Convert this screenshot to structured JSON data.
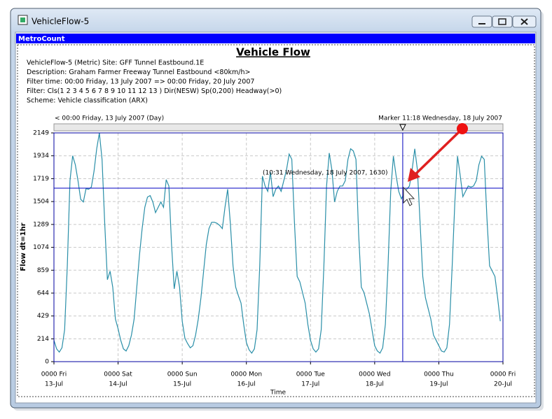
{
  "window": {
    "title": "VehicleFlow-5",
    "toolbar": "MetroCount"
  },
  "chart_data": {
    "type": "line",
    "title": "Vehicle Flow",
    "info": [
      "VehicleFlow-5 (Metric) Site: GFF Tunnel Eastbound.1E",
      "Description: Graham Farmer Freeway Tunnel Eastbound <80km/h>",
      "Filter time: 00:00 Friday, 13 July 2007 => 00:00 Friday, 20 July 2007",
      "Filter: Cls(1 2 3 4 5 6 7 8 9 10 11 12 13 ) Dir(NESW) Sp(0,200) Headway(>0)",
      "Scheme: Vehicle classification (ARX)"
    ],
    "range_label": "< 00:00 Friday, 13 July 2007 (Day)",
    "marker_label": "Marker 11:18 Wednesday, 18 July 2007",
    "marker_x": 130.5,
    "cursor": {
      "value": 1630,
      "label": "(10:31 Wednesday, 18 July 2007, 1630)"
    },
    "x_label": "Time",
    "y_label": "Flow dt=1hr",
    "color": "#2a8fa8",
    "grid": true,
    "xlim": [
      0,
      168
    ],
    "ylim": [
      0,
      2149
    ],
    "yticks": [
      0,
      214,
      429,
      644,
      859,
      1074,
      1289,
      1504,
      1719,
      1934,
      2149
    ],
    "xticks": [
      {
        "value": 0,
        "label": "0000 Fri"
      },
      {
        "value": 24,
        "label": "0000 Sat"
      },
      {
        "value": 48,
        "label": "0000 Sun"
      },
      {
        "value": 72,
        "label": "0000 Mon"
      },
      {
        "value": 96,
        "label": "0000 Tue"
      },
      {
        "value": 120,
        "label": "0000 Wed"
      },
      {
        "value": 144,
        "label": "0000 Thu"
      },
      {
        "value": 168,
        "label": "0000 Fri"
      }
    ],
    "xtick_dates": [
      "13-Jul",
      "14-Jul",
      "15-Jul",
      "16-Jul",
      "17-Jul",
      "18-Jul",
      "19-Jul",
      "20-Jul"
    ],
    "x": [
      0,
      1,
      2,
      3,
      4,
      5,
      6,
      7,
      8,
      9,
      10,
      11,
      12,
      13,
      14,
      15,
      16,
      17,
      18,
      19,
      20,
      21,
      22,
      23,
      24,
      25,
      26,
      27,
      28,
      29,
      30,
      31,
      32,
      33,
      34,
      35,
      36,
      37,
      38,
      39,
      40,
      41,
      42,
      43,
      44,
      45,
      46,
      47,
      48,
      49,
      50,
      51,
      52,
      53,
      54,
      55,
      56,
      57,
      58,
      59,
      60,
      61,
      62,
      63,
      64,
      65,
      66,
      67,
      68,
      69,
      70,
      71,
      72,
      73,
      74,
      75,
      76,
      77,
      78,
      79,
      80,
      81,
      82,
      83,
      84,
      85,
      86,
      87,
      88,
      89,
      90,
      91,
      92,
      93,
      94,
      95,
      96,
      97,
      98,
      99,
      100,
      101,
      102,
      103,
      104,
      105,
      106,
      107,
      108,
      109,
      110,
      111,
      112,
      113,
      114,
      115,
      116,
      117,
      118,
      119,
      120,
      121,
      122,
      123,
      124,
      125,
      126,
      127,
      128,
      129,
      130,
      131,
      132,
      133,
      134,
      135,
      136,
      137,
      138,
      139,
      140,
      141,
      142,
      143,
      144,
      145,
      146,
      147,
      148,
      149,
      150,
      151,
      152,
      153,
      154,
      155,
      156,
      157,
      158,
      159,
      160,
      161,
      162,
      163,
      164,
      165,
      166,
      167
    ],
    "values": [
      200,
      120,
      90,
      130,
      300,
      900,
      1700,
      1934,
      1850,
      1700,
      1526,
      1500,
      1625,
      1620,
      1640,
      1789,
      2000,
      2149,
      1900,
      1300,
      770,
      850,
      700,
      400,
      309,
      200,
      120,
      100,
      150,
      250,
      400,
      700,
      1000,
      1250,
      1450,
      1546,
      1560,
      1500,
      1400,
      1450,
      1500,
      1450,
      1710,
      1650,
      1100,
      684,
      850,
      700,
      380,
      220,
      170,
      130,
      150,
      250,
      400,
      600,
      850,
      1100,
      1250,
      1309,
      1310,
      1300,
      1280,
      1250,
      1450,
      1620,
      1300,
      900,
      700,
      620,
      550,
      350,
      180,
      112,
      80,
      120,
      300,
      900,
      1743,
      1650,
      1600,
      1780,
      1550,
      1620,
      1650,
      1600,
      1700,
      1800,
      1950,
      1900,
      1300,
      800,
      750,
      650,
      550,
      350,
      200,
      120,
      90,
      120,
      300,
      900,
      1650,
      1960,
      1800,
      1500,
      1600,
      1650,
      1650,
      1700,
      1900,
      2000,
      1980,
      1900,
      1200,
      700,
      650,
      550,
      450,
      300,
      150,
      100,
      80,
      130,
      350,
      900,
      1600,
      1930,
      1750,
      1600,
      1530,
      1580,
      1620,
      1650,
      1800,
      2000,
      1800,
      1300,
      800,
      600,
      500,
      400,
      250,
      200,
      150,
      100,
      90,
      130,
      350,
      900,
      1500,
      1930,
      1750,
      1550,
      1600,
      1650,
      1640,
      1650,
      1700,
      1850,
      1930,
      1900,
      1350,
      900,
      850,
      800,
      600,
      380
    ]
  }
}
